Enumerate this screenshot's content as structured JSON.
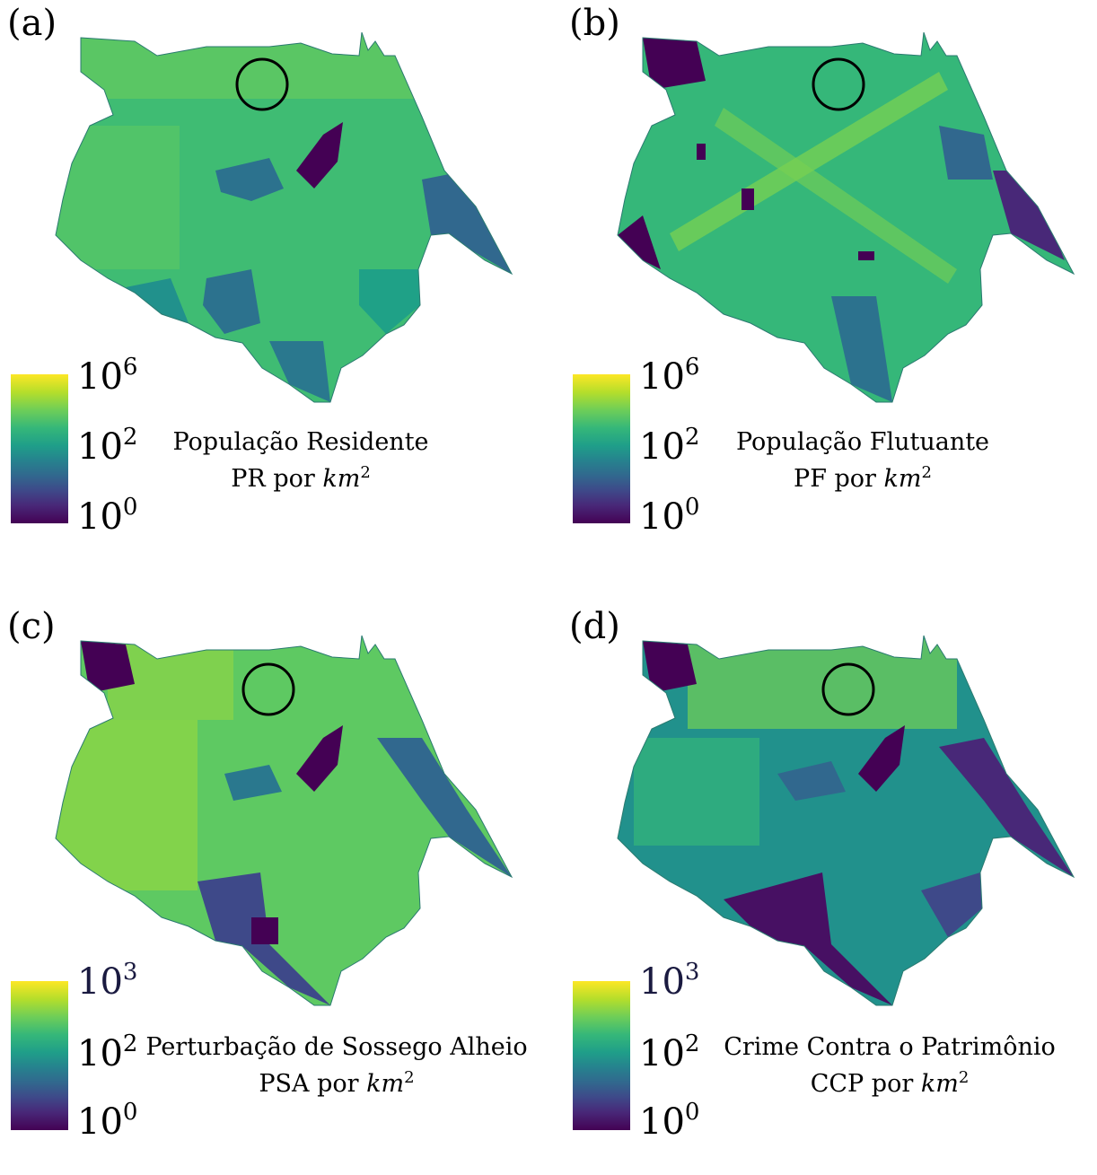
{
  "panels": [
    {
      "label": "(a)",
      "caption_line1": "População Residente",
      "caption_line2_prefix": "PR por ",
      "unit": "km",
      "unit_exp": "2",
      "colorbar": {
        "ticks": [
          {
            "base": "10",
            "exp": "6"
          },
          {
            "base": "10",
            "exp": "2"
          },
          {
            "base": "10",
            "exp": "0"
          }
        ]
      }
    },
    {
      "label": "(b)",
      "caption_line1": "População Flutuante",
      "caption_line2_prefix": "PF por ",
      "unit": "km",
      "unit_exp": "2",
      "colorbar": {
        "ticks": [
          {
            "base": "10",
            "exp": "6"
          },
          {
            "base": "10",
            "exp": "2"
          },
          {
            "base": "10",
            "exp": "0"
          }
        ]
      }
    },
    {
      "label": "(c)",
      "caption_line1": "Perturbação de Sossego Alheio",
      "caption_line2_prefix": "PSA por ",
      "unit": "km",
      "unit_exp": "2",
      "colorbar": {
        "ticks": [
          {
            "base": "10",
            "exp": "3"
          },
          {
            "base": "10",
            "exp": "2"
          },
          {
            "base": "10",
            "exp": "0"
          }
        ]
      }
    },
    {
      "label": "(d)",
      "caption_line1": "Crime Contra o Patrimônio",
      "caption_line2_prefix": "CCP por ",
      "unit": "km",
      "unit_exp": "2",
      "colorbar": {
        "ticks": [
          {
            "base": "10",
            "exp": "3"
          },
          {
            "base": "10",
            "exp": "2"
          },
          {
            "base": "10",
            "exp": "0"
          }
        ]
      }
    }
  ],
  "colormap": "viridis",
  "colors": {
    "high": "#fde725",
    "mid": "#21918c",
    "low": "#440154"
  }
}
